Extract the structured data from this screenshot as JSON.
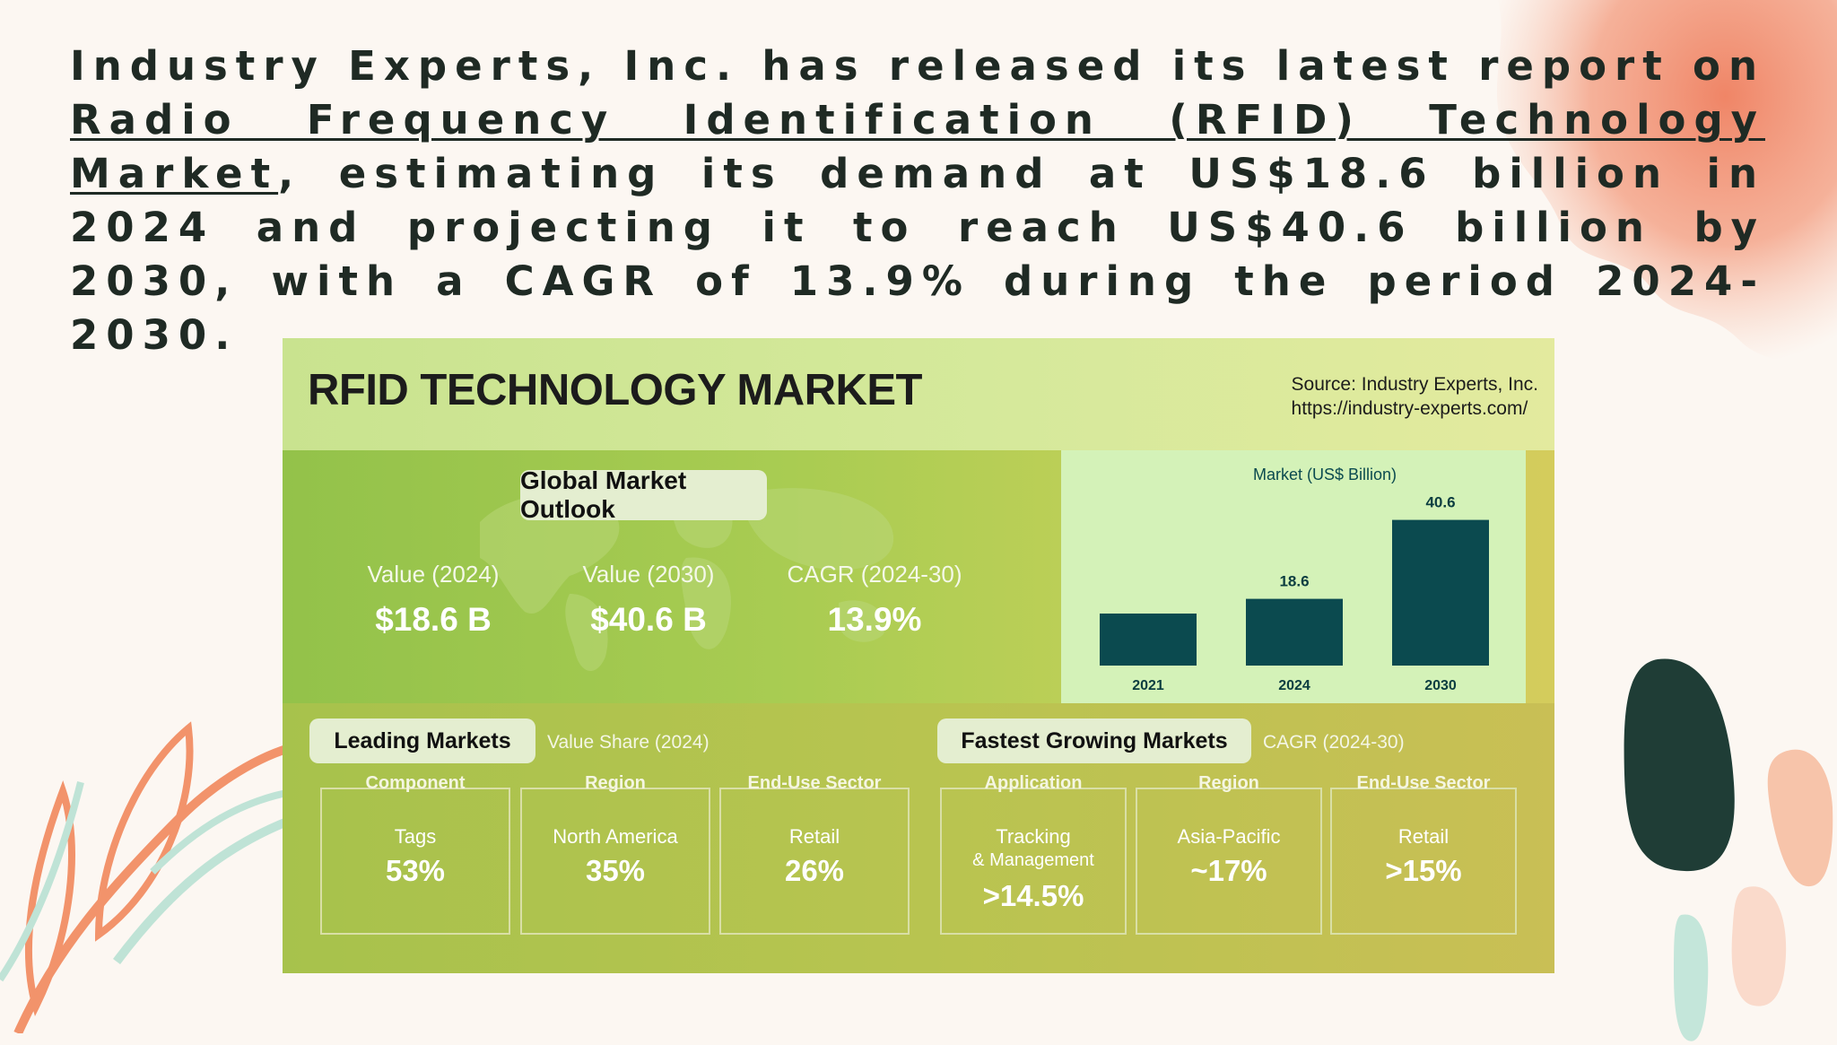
{
  "headline": {
    "before": "Industry Experts, Inc. has released its latest report on ",
    "link": "Radio Frequency Identification (RFID) Technology Market",
    "after": ", estimating its demand at US$18.6 billion in 2024 and projecting it to reach US$40.6 billion by 2030, with a CAGR of 13.9% during the period 2024-2030."
  },
  "card": {
    "title": "RFID TECHNOLOGY MARKET",
    "source_line1": "Source: Industry Experts, Inc.",
    "source_line2": "https://industry-experts.com/",
    "outlook_label": "Global Market Outlook",
    "kpis": [
      {
        "label": "Value (2024)",
        "value": "$18.6 B"
      },
      {
        "label": "Value (2030)",
        "value": "$40.6 B"
      },
      {
        "label": "CAGR (2024-30)",
        "value": "13.9%"
      }
    ],
    "leading": {
      "label": "Leading Markets",
      "note": "Value Share (2024)",
      "items": [
        {
          "head": "Component",
          "name": "Tags",
          "value": "53%"
        },
        {
          "head": "Region",
          "name": "North America",
          "value": "35%"
        },
        {
          "head": "End-Use Sector",
          "name": "Retail",
          "value": "26%"
        }
      ]
    },
    "fastest": {
      "label": "Fastest Growing Markets",
      "note": "CAGR (2024-30)",
      "items": [
        {
          "head": "Application",
          "name": "Tracking",
          "name2": "& Management",
          "value": ">14.5%"
        },
        {
          "head": "Region",
          "name": "Asia-Pacific",
          "value": "~17%"
        },
        {
          "head": "End-Use Sector",
          "name": "Retail",
          "value": ">15%"
        }
      ]
    }
  },
  "chart_data": {
    "type": "bar",
    "title": "Market (US$ Billion)",
    "categories": [
      "2021",
      "2024",
      "2030"
    ],
    "values": [
      14.5,
      18.6,
      40.6
    ],
    "data_labels": [
      "",
      "18.6",
      "40.6"
    ],
    "ylim": [
      0,
      45
    ],
    "bar_color": "#0b4a4f",
    "grid": false
  },
  "colors": {
    "accent_orange": "#f2936b",
    "mint": "#bfe3d6",
    "dark_green": "#1f3d36",
    "peach": "#f7c4aa"
  }
}
